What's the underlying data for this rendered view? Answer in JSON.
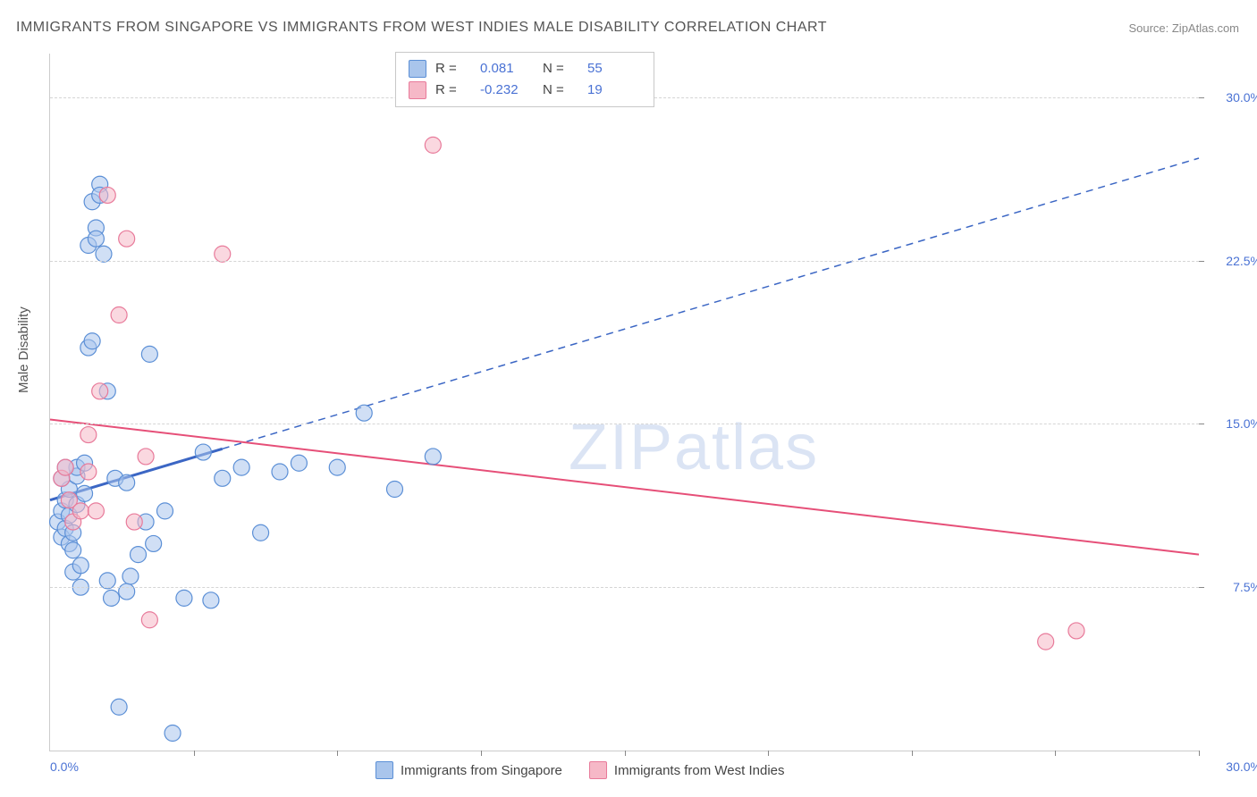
{
  "chart": {
    "type": "scatter",
    "title": "IMMIGRANTS FROM SINGAPORE VS IMMIGRANTS FROM WEST INDIES MALE DISABILITY CORRELATION CHART",
    "source": "Source: ZipAtlas.com",
    "watermark": "ZIPatlas",
    "ylabel": "Male Disability",
    "background_color": "#ffffff",
    "grid_color": "#d5d5d5",
    "axis_color": "#cccccc",
    "tick_color": "#888888",
    "text_color": "#555555",
    "value_color": "#4a72d4",
    "xlim": [
      0,
      30
    ],
    "ylim": [
      0,
      32
    ],
    "ytick_positions": [
      7.5,
      15.0,
      22.5,
      30.0
    ],
    "ytick_labels": [
      "7.5%",
      "15.0%",
      "22.5%",
      "30.0%"
    ],
    "xtick_positions": [
      3.75,
      7.5,
      11.25,
      15.0,
      18.75,
      22.5,
      26.25,
      30.0
    ],
    "xlabel_min": "0.0%",
    "xlabel_max": "30.0%",
    "series": [
      {
        "name": "Immigrants from Singapore",
        "color_fill": "#a9c5ec",
        "color_stroke": "#5b8fd6",
        "marker_radius": 9,
        "fill_opacity": 0.55,
        "R": "0.081",
        "N": "55",
        "trend": {
          "x1": 0,
          "y1": 11.5,
          "x2": 30,
          "y2": 27.2,
          "solid_until_x": 4.5,
          "color": "#3b66c4",
          "width": 2
        },
        "points": [
          [
            0.2,
            10.5
          ],
          [
            0.3,
            11.0
          ],
          [
            0.3,
            9.8
          ],
          [
            0.4,
            10.2
          ],
          [
            0.4,
            11.5
          ],
          [
            0.5,
            9.5
          ],
          [
            0.5,
            10.8
          ],
          [
            0.5,
            12.0
          ],
          [
            0.6,
            9.2
          ],
          [
            0.6,
            10.0
          ],
          [
            0.6,
            8.2
          ],
          [
            0.7,
            11.3
          ],
          [
            0.7,
            12.6
          ],
          [
            0.7,
            13.0
          ],
          [
            0.8,
            8.5
          ],
          [
            0.8,
            7.5
          ],
          [
            0.9,
            11.8
          ],
          [
            0.9,
            13.2
          ],
          [
            1.0,
            18.5
          ],
          [
            1.0,
            23.2
          ],
          [
            1.1,
            25.2
          ],
          [
            1.1,
            18.8
          ],
          [
            1.2,
            24.0
          ],
          [
            1.2,
            23.5
          ],
          [
            1.3,
            26.0
          ],
          [
            1.3,
            25.5
          ],
          [
            1.4,
            22.8
          ],
          [
            1.5,
            16.5
          ],
          [
            1.5,
            7.8
          ],
          [
            1.6,
            7.0
          ],
          [
            1.7,
            12.5
          ],
          [
            1.8,
            2.0
          ],
          [
            2.0,
            12.3
          ],
          [
            2.0,
            7.3
          ],
          [
            2.1,
            8.0
          ],
          [
            2.3,
            9.0
          ],
          [
            2.5,
            10.5
          ],
          [
            2.6,
            18.2
          ],
          [
            2.7,
            9.5
          ],
          [
            3.0,
            11.0
          ],
          [
            3.2,
            0.8
          ],
          [
            3.5,
            7.0
          ],
          [
            4.0,
            13.7
          ],
          [
            4.2,
            6.9
          ],
          [
            4.5,
            12.5
          ],
          [
            5.0,
            13.0
          ],
          [
            5.5,
            10.0
          ],
          [
            6.0,
            12.8
          ],
          [
            6.5,
            13.2
          ],
          [
            7.5,
            13.0
          ],
          [
            8.2,
            15.5
          ],
          [
            9.0,
            12.0
          ],
          [
            10.0,
            13.5
          ],
          [
            0.3,
            12.5
          ],
          [
            0.4,
            13.0
          ]
        ]
      },
      {
        "name": "Immigrants from West Indies",
        "color_fill": "#f6b8c7",
        "color_stroke": "#e87a9a",
        "marker_radius": 9,
        "fill_opacity": 0.55,
        "R": "-0.232",
        "N": "19",
        "trend": {
          "x1": 0,
          "y1": 15.2,
          "x2": 30,
          "y2": 9.0,
          "solid_until_x": 30,
          "color": "#e64f78",
          "width": 2
        },
        "points": [
          [
            0.3,
            12.5
          ],
          [
            0.4,
            13.0
          ],
          [
            0.5,
            11.5
          ],
          [
            0.6,
            10.5
          ],
          [
            0.8,
            11.0
          ],
          [
            1.0,
            12.8
          ],
          [
            1.0,
            14.5
          ],
          [
            1.3,
            16.5
          ],
          [
            1.5,
            25.5
          ],
          [
            1.8,
            20.0
          ],
          [
            2.0,
            23.5
          ],
          [
            2.2,
            10.5
          ],
          [
            2.5,
            13.5
          ],
          [
            2.6,
            6.0
          ],
          [
            4.5,
            22.8
          ],
          [
            10.0,
            27.8
          ],
          [
            26.0,
            5.0
          ],
          [
            26.8,
            5.5
          ],
          [
            1.2,
            11.0
          ]
        ]
      }
    ],
    "legend_top_rows": [
      {
        "swatch_fill": "#a9c5ec",
        "swatch_border": "#5b8fd6",
        "r_label": "R =",
        "r_val": "0.081",
        "n_label": "N =",
        "n_val": "55"
      },
      {
        "swatch_fill": "#f6b8c7",
        "swatch_border": "#e87a9a",
        "r_label": "R =",
        "r_val": "-0.232",
        "n_label": "N =",
        "n_val": "19"
      }
    ],
    "legend_bottom": [
      {
        "swatch_fill": "#a9c5ec",
        "swatch_border": "#5b8fd6",
        "label": "Immigrants from Singapore"
      },
      {
        "swatch_fill": "#f6b8c7",
        "swatch_border": "#e87a9a",
        "label": "Immigrants from West Indies"
      }
    ]
  }
}
